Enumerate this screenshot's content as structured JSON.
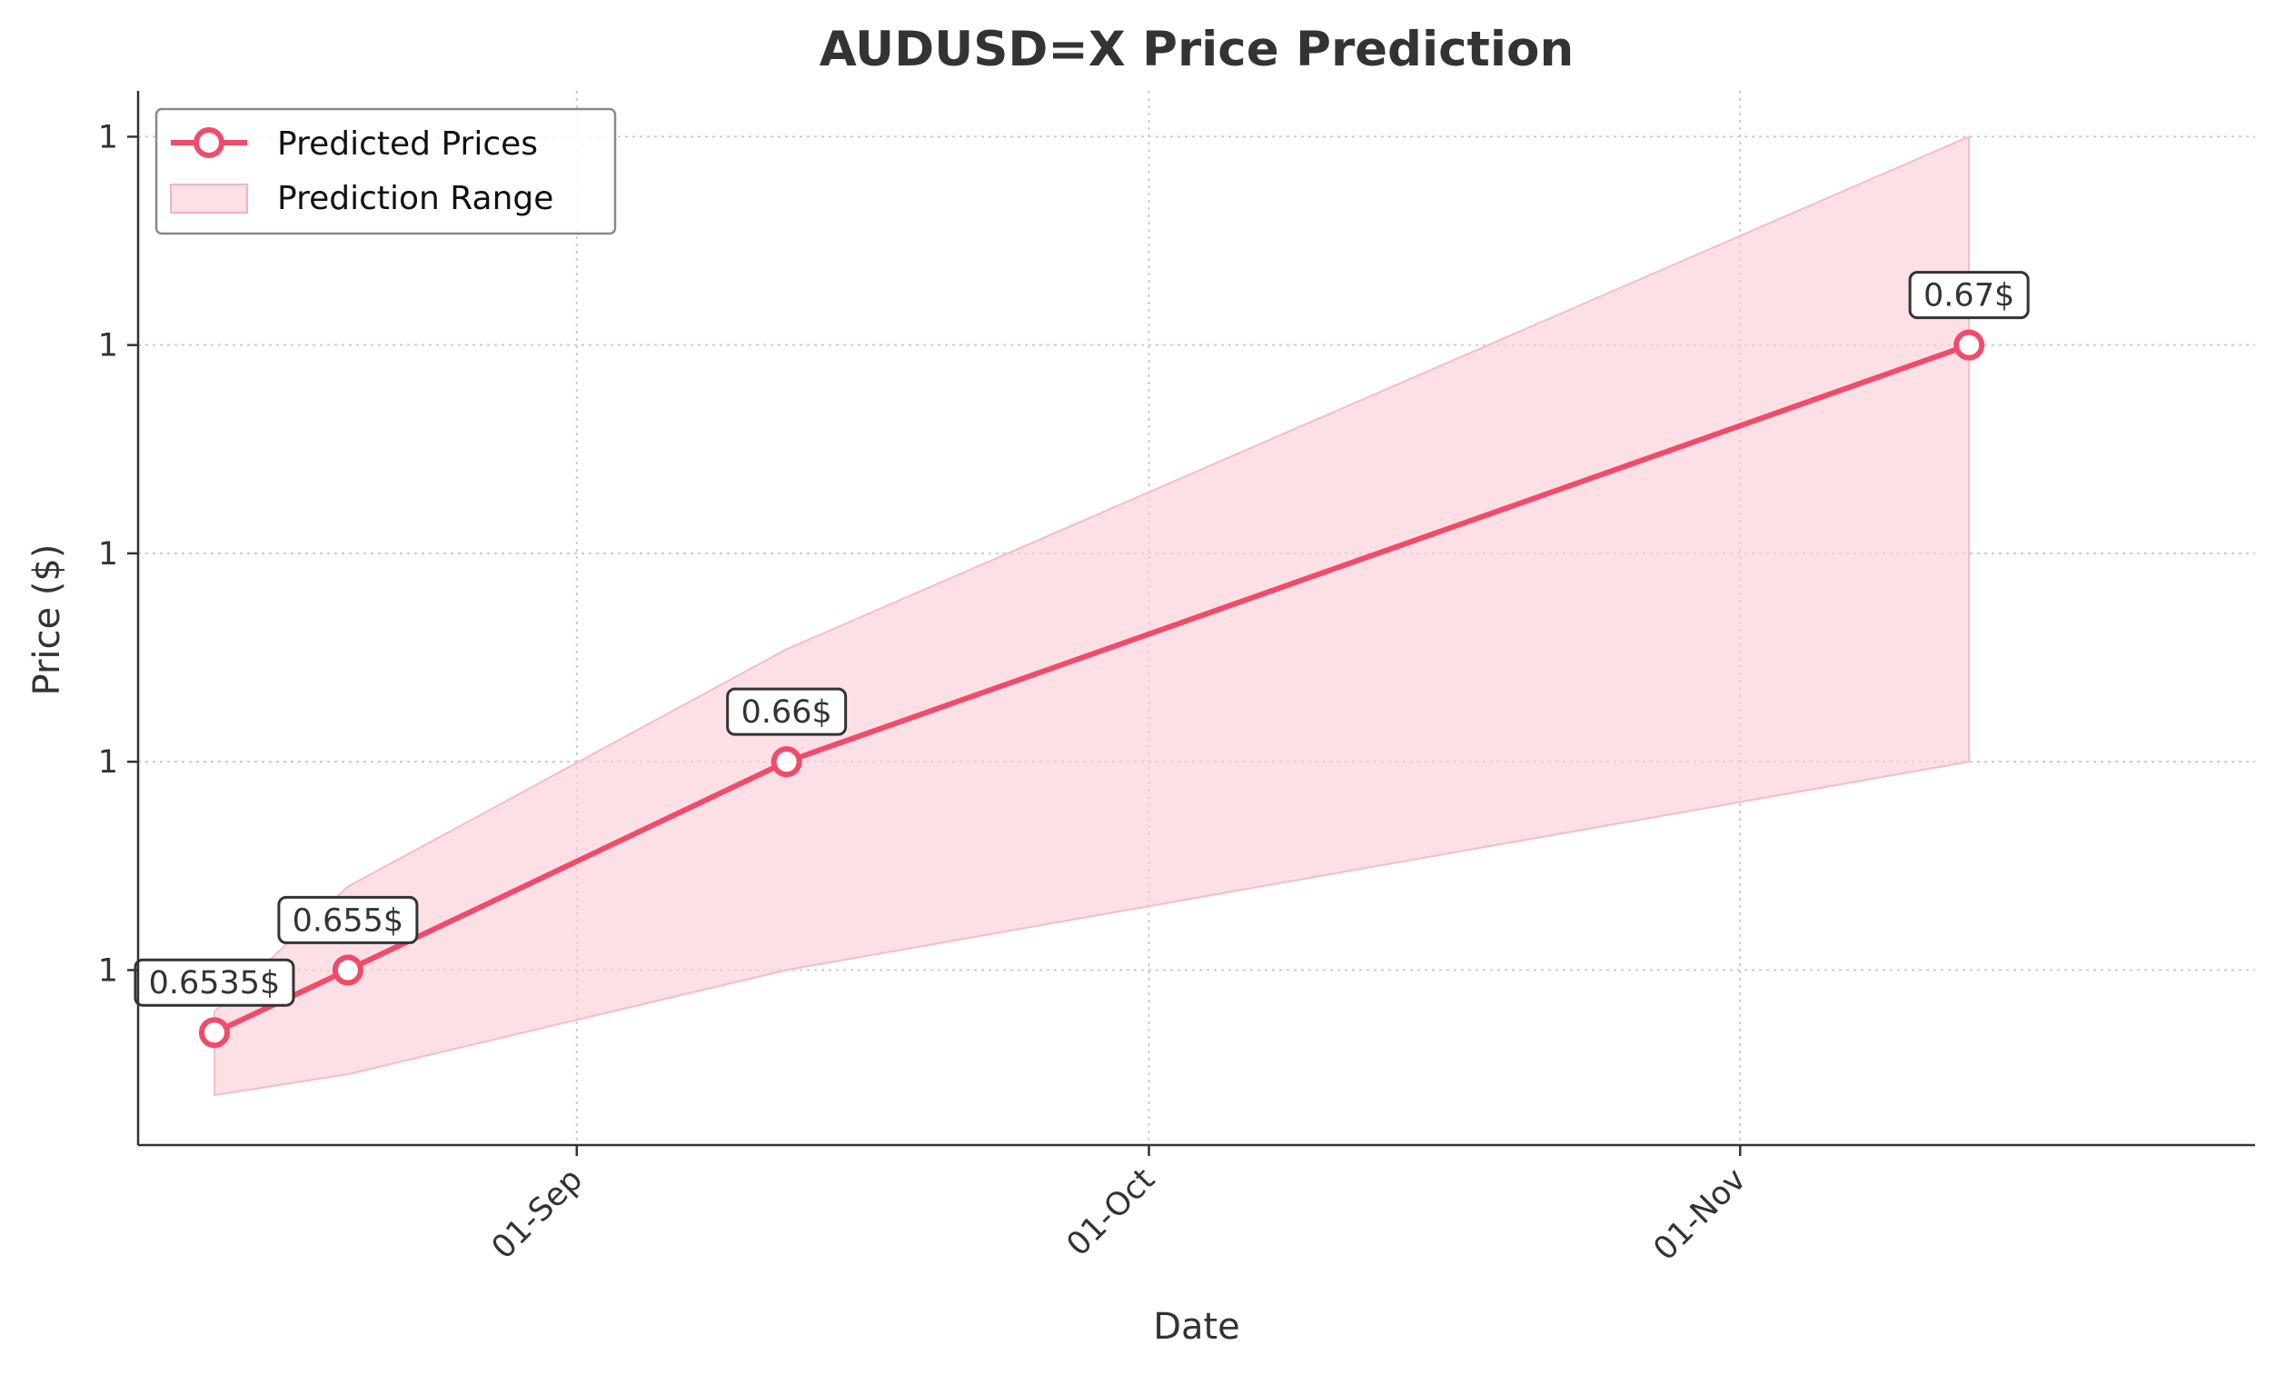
{
  "chart_data": {
    "type": "line",
    "title": "AUDUSD=X Price Prediction",
    "xlabel": "Date",
    "ylabel": "Price ($)",
    "x_tick_labels": [
      "01-Sep",
      "01-Oct",
      "01-Nov"
    ],
    "x_tick_dates": [
      "2024-09-01",
      "2024-10-01",
      "2024-11-01"
    ],
    "y_tick_values": [
      0.655,
      0.66,
      0.665,
      0.67,
      0.675
    ],
    "y_tick_labels": [
      "1",
      "1",
      "1",
      "1",
      "1"
    ],
    "xlim": [
      "2024-08-09",
      "2024-11-28"
    ],
    "ylim": [
      0.6508,
      0.6761
    ],
    "grid": true,
    "legend_position": "top-left",
    "colors": {
      "line": "#f14b6b",
      "band": "#fbd0d9",
      "marker_fill": "#ffffff"
    },
    "series": [
      {
        "name": "Predicted Prices",
        "x": [
          "2024-08-13",
          "2024-08-20",
          "2024-09-12",
          "2024-11-13"
        ],
        "y": [
          0.6535,
          0.655,
          0.66,
          0.67
        ],
        "annotations": [
          "0.6535$",
          "0.655$",
          "0.66$",
          "0.67$"
        ]
      }
    ],
    "range": {
      "name": "Prediction Range",
      "x": [
        "2024-08-13",
        "2024-08-20",
        "2024-09-12",
        "2024-11-13"
      ],
      "lower": [
        0.652,
        0.6525,
        0.655,
        0.66
      ],
      "upper": [
        0.654,
        0.657,
        0.6627,
        0.675
      ]
    }
  }
}
